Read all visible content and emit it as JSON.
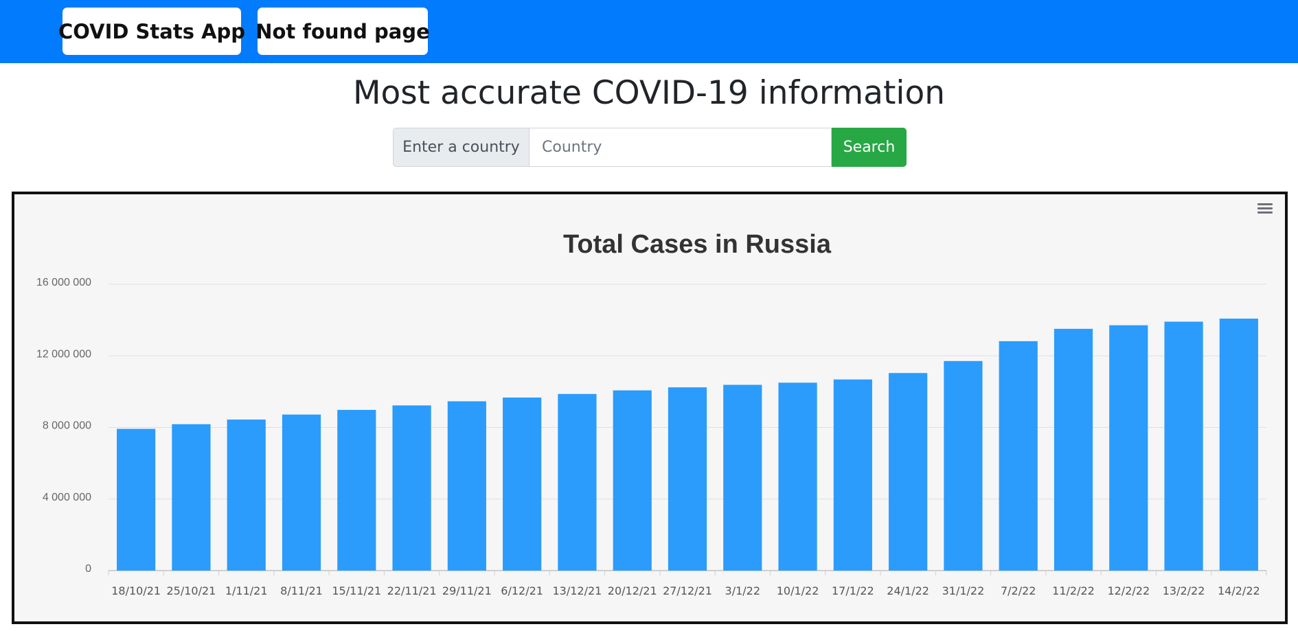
{
  "nav": {
    "home_label": "COVID Stats App",
    "notfound_label": "Not found page"
  },
  "page": {
    "title": "Most accurate COVID-19 information"
  },
  "search": {
    "prepend_label": "Enter a country",
    "placeholder": "Country",
    "value": "",
    "button_label": "Search"
  },
  "colors": {
    "navbar": "#037bfd",
    "bar": "#2b9cfb",
    "search_button": "#28a745"
  },
  "chart_data": {
    "type": "bar",
    "title": "Total Cases in Russia",
    "xlabel": "",
    "ylabel": "",
    "ylim": [
      0,
      16000000
    ],
    "yticks": [
      0,
      4000000,
      8000000,
      12000000,
      16000000
    ],
    "ytick_labels": [
      "0",
      "4 000 000",
      "8 000 000",
      "12 000 000",
      "16 000 000"
    ],
    "grid": true,
    "categories": [
      "18/10/21",
      "25/10/21",
      "1/11/21",
      "8/11/21",
      "15/11/21",
      "22/11/21",
      "29/11/21",
      "6/12/21",
      "13/12/21",
      "20/12/21",
      "27/12/21",
      "3/1/22",
      "10/1/22",
      "17/1/22",
      "24/1/22",
      "31/1/22",
      "7/2/22",
      "11/2/22",
      "12/2/22",
      "13/2/22",
      "14/2/22"
    ],
    "values": [
      7920000,
      8180000,
      8440000,
      8720000,
      8980000,
      9230000,
      9460000,
      9670000,
      9870000,
      10070000,
      10240000,
      10380000,
      10500000,
      10680000,
      11040000,
      11710000,
      12820000,
      13510000,
      13710000,
      13910000,
      14080000
    ]
  }
}
